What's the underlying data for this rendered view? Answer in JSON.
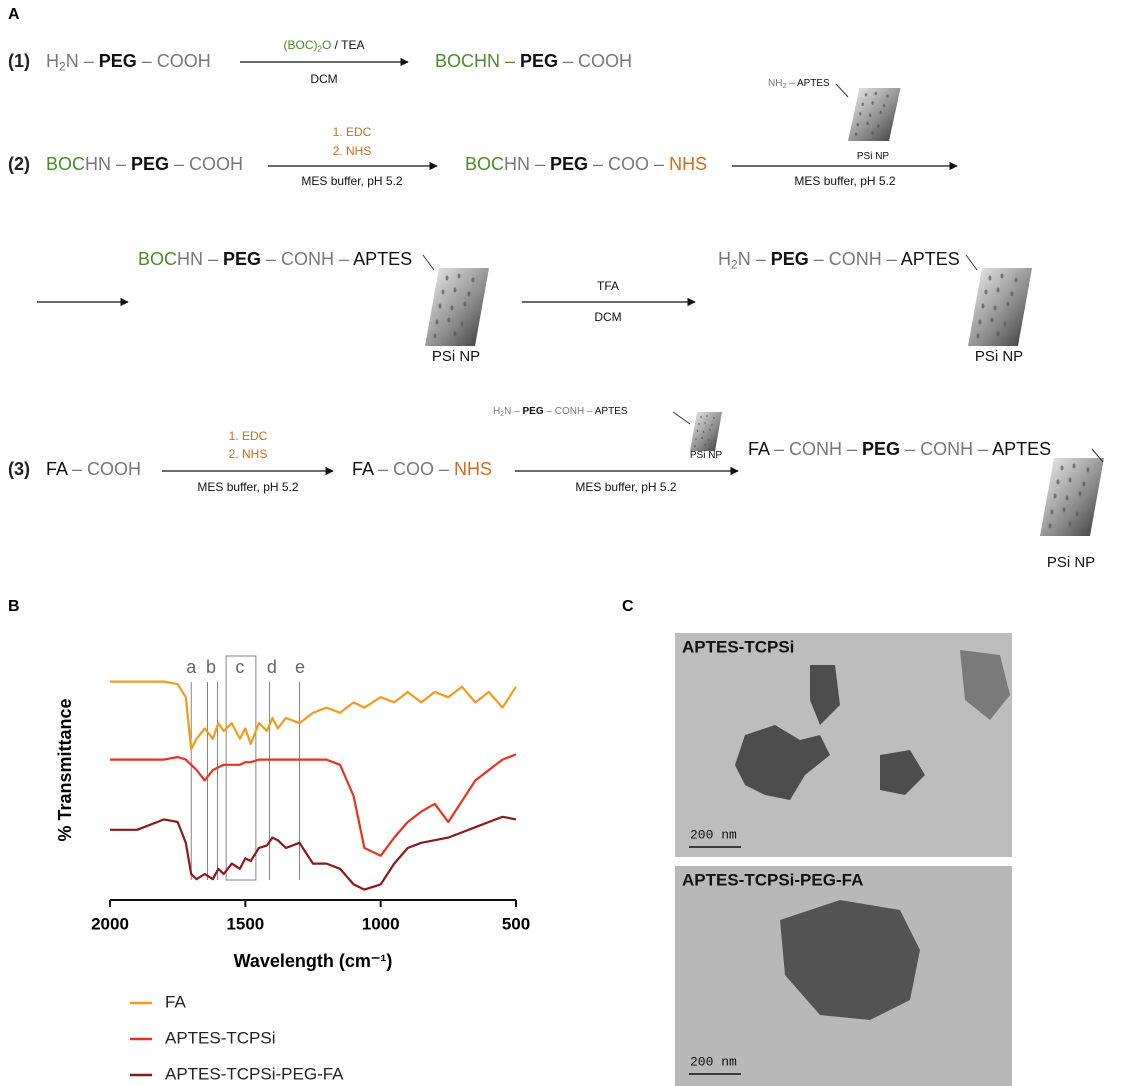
{
  "panel_labels": [
    "A",
    "B",
    "C"
  ],
  "scheme": {
    "items": [
      {
        "segments": [
          {
            "text": "(1)",
            "color": "#222",
            "bold": true
          }
        ]
      },
      {
        "segments": [
          {
            "text": "H",
            "color": "#777"
          },
          {
            "text": "2",
            "color": "#777",
            "sub": true
          },
          {
            "text": "N – ",
            "color": "#777"
          },
          {
            "text": "PEG",
            "color": "#111",
            "bold": true
          },
          {
            "text": " – COOH",
            "color": "#777"
          }
        ]
      },
      {
        "segments": [
          {
            "text": "(BOC)",
            "color": "#4a8a2a"
          },
          {
            "text": "2",
            "color": "#4a8a2a",
            "sub": true
          },
          {
            "text": "O",
            "color": "#4a8a2a"
          },
          {
            "text": " / TEA",
            "color": "#111"
          }
        ]
      },
      {
        "segments": [
          {
            "text": "DCM",
            "color": "#111"
          }
        ]
      },
      {
        "segments": [
          {
            "text": "BOC",
            "color": "#4a8a2a"
          },
          {
            "text": "HN – ",
            "color": "#4a8a2a"
          },
          {
            "text": "PEG",
            "color": "#111",
            "bold": true
          },
          {
            "text": " – COOH",
            "color": "#777"
          }
        ]
      },
      {
        "segments": [
          {
            "text": "(2)",
            "color": "#222",
            "bold": true
          }
        ]
      },
      {
        "segments": [
          {
            "text": "BOC",
            "color": "#4a8a2a"
          },
          {
            "text": "HN – ",
            "color": "#777"
          },
          {
            "text": "PEG",
            "color": "#111",
            "bold": true
          },
          {
            "text": " – COOH",
            "color": "#777"
          }
        ]
      },
      {
        "segments": [
          {
            "text": "1. EDC",
            "color": "#d2691e"
          }
        ]
      },
      {
        "segments": [
          {
            "text": "2. NHS",
            "color": "#d2691e"
          }
        ]
      },
      {
        "segments": [
          {
            "text": "MES buffer, pH 5.2",
            "color": "#111"
          }
        ]
      },
      {
        "segments": [
          {
            "text": "BOC",
            "color": "#4a8a2a"
          },
          {
            "text": "HN – ",
            "color": "#777"
          },
          {
            "text": "PEG",
            "color": "#111",
            "bold": true
          },
          {
            "text": " – COO – ",
            "color": "#777"
          },
          {
            "text": "NHS",
            "color": "#d2691e"
          }
        ]
      },
      {
        "segments": [
          {
            "text": "NH",
            "color": "#777"
          },
          {
            "text": "2",
            "color": "#777",
            "sub": true
          },
          {
            "text": " – ",
            "color": "#777"
          },
          {
            "text": "APTES",
            "color": "#111"
          }
        ]
      },
      {
        "segments": [
          {
            "text": "PSi NP",
            "color": "#111"
          }
        ]
      },
      {
        "segments": [
          {
            "text": "MES buffer, pH 5.2",
            "color": "#111"
          }
        ]
      },
      {
        "segments": [
          {
            "text": "BOC",
            "color": "#4a8a2a"
          },
          {
            "text": "HN – ",
            "color": "#777"
          },
          {
            "text": "PEG",
            "color": "#111",
            "bold": true
          },
          {
            "text": " – CONH – ",
            "color": "#777"
          },
          {
            "text": "APTES",
            "color": "#111"
          }
        ]
      },
      {
        "segments": [
          {
            "text": "PSi NP",
            "color": "#111"
          }
        ]
      },
      {
        "segments": [
          {
            "text": "TFA",
            "color": "#111"
          }
        ]
      },
      {
        "segments": [
          {
            "text": "DCM",
            "color": "#111"
          }
        ]
      },
      {
        "segments": [
          {
            "text": "H",
            "color": "#777"
          },
          {
            "text": "2",
            "color": "#777",
            "sub": true
          },
          {
            "text": "N – ",
            "color": "#777"
          },
          {
            "text": "PEG",
            "color": "#111",
            "bold": true
          },
          {
            "text": " – CONH – ",
            "color": "#777"
          },
          {
            "text": "APTES",
            "color": "#111"
          }
        ]
      },
      {
        "segments": [
          {
            "text": "PSi NP",
            "color": "#111"
          }
        ]
      },
      {
        "segments": [
          {
            "text": "(3)",
            "color": "#222",
            "bold": true
          }
        ]
      },
      {
        "segments": [
          {
            "text": "FA",
            "color": "#111"
          },
          {
            "text": " – COOH",
            "color": "#777"
          }
        ]
      },
      {
        "segments": [
          {
            "text": "1. EDC",
            "color": "#d2691e"
          }
        ]
      },
      {
        "segments": [
          {
            "text": "2. NHS",
            "color": "#d2691e"
          }
        ]
      },
      {
        "segments": [
          {
            "text": "MES buffer, pH 5.2",
            "color": "#111"
          }
        ]
      },
      {
        "segments": [
          {
            "text": "FA",
            "color": "#111"
          },
          {
            "text": " – COO – ",
            "color": "#777"
          },
          {
            "text": "NHS",
            "color": "#d2691e"
          }
        ]
      },
      {
        "segments": [
          {
            "text": "H",
            "color": "#777"
          },
          {
            "text": "2",
            "color": "#777",
            "sub": true
          },
          {
            "text": "N – ",
            "color": "#777"
          },
          {
            "text": "PEG",
            "color": "#111",
            "bold": true
          },
          {
            "text": " – CONH – ",
            "color": "#777"
          },
          {
            "text": "APTES",
            "color": "#111"
          }
        ]
      },
      {
        "segments": [
          {
            "text": "PSi NP",
            "color": "#111"
          }
        ]
      },
      {
        "segments": [
          {
            "text": "MES buffer, pH 5.2",
            "color": "#111"
          }
        ]
      },
      {
        "segments": [
          {
            "text": "FA",
            "color": "#111"
          },
          {
            "text": " – CONH – ",
            "color": "#777"
          },
          {
            "text": "PEG",
            "color": "#111",
            "bold": true
          },
          {
            "text": " – CONH – ",
            "color": "#777"
          },
          {
            "text": "APTES",
            "color": "#111"
          }
        ]
      },
      {
        "segments": [
          {
            "text": "PSi NP",
            "color": "#111"
          }
        ]
      }
    ]
  },
  "chart_data": {
    "type": "line",
    "x_label": "Wavelength (cm⁻¹)",
    "y_label": "% Transmittance",
    "xlim": [
      2000,
      500
    ],
    "xticks": [
      2000,
      1500,
      1000,
      500
    ],
    "ylim": [
      0,
      100
    ],
    "x": [
      2000,
      1900,
      1800,
      1750,
      1720,
      1700,
      1680,
      1650,
      1620,
      1600,
      1580,
      1550,
      1520,
      1500,
      1480,
      1450,
      1420,
      1400,
      1380,
      1350,
      1300,
      1250,
      1200,
      1150,
      1100,
      1060,
      1000,
      950,
      900,
      850,
      800,
      750,
      700,
      650,
      600,
      550,
      500
    ],
    "series": [
      {
        "name": "FA",
        "color": "#f29a1a",
        "values": [
          84,
          84,
          84,
          83,
          78,
          58,
          62,
          66,
          62,
          68,
          65,
          68,
          62,
          66,
          60,
          68,
          65,
          70,
          66,
          70,
          68,
          72,
          74,
          72,
          76,
          74,
          78,
          76,
          80,
          76,
          80,
          78,
          82,
          76,
          80,
          74,
          82
        ]
      },
      {
        "name": "APTES-TCPSi",
        "color": "#e8321e",
        "values": [
          54,
          54,
          54,
          55,
          54,
          52,
          50,
          46,
          50,
          51,
          52,
          52,
          52,
          53,
          53,
          54,
          54,
          54,
          54,
          54,
          54,
          54,
          54,
          52,
          40,
          20,
          17,
          24,
          30,
          34,
          37,
          30,
          38,
          46,
          50,
          54,
          56
        ]
      },
      {
        "name": "APTES-TCPSi-PEG-FA",
        "color": "#8b1a1a",
        "values": [
          27,
          27,
          31,
          30,
          22,
          10,
          8,
          10,
          8,
          12,
          10,
          14,
          12,
          16,
          15,
          20,
          21,
          24,
          23,
          20,
          22,
          14,
          14,
          12,
          6,
          4,
          6,
          14,
          20,
          22,
          23,
          24,
          26,
          28,
          30,
          32,
          31
        ]
      }
    ],
    "band_labels": [
      {
        "label": "a",
        "x": 1700
      },
      {
        "label": "b",
        "x": 1627
      },
      {
        "label": "c",
        "x": 1520
      },
      {
        "label": "d",
        "x": 1402
      },
      {
        "label": "e",
        "x": 1298
      }
    ],
    "band_lines": [
      1700,
      1640,
      1603,
      1411,
      1300
    ],
    "band_box": [
      1571,
      1461
    ]
  },
  "tem_images": [
    {
      "title": "APTES-TCPSi",
      "scale_bar": "200 nm"
    },
    {
      "title": "APTES-TCPSi-PEG-FA",
      "scale_bar": "200 nm"
    }
  ]
}
